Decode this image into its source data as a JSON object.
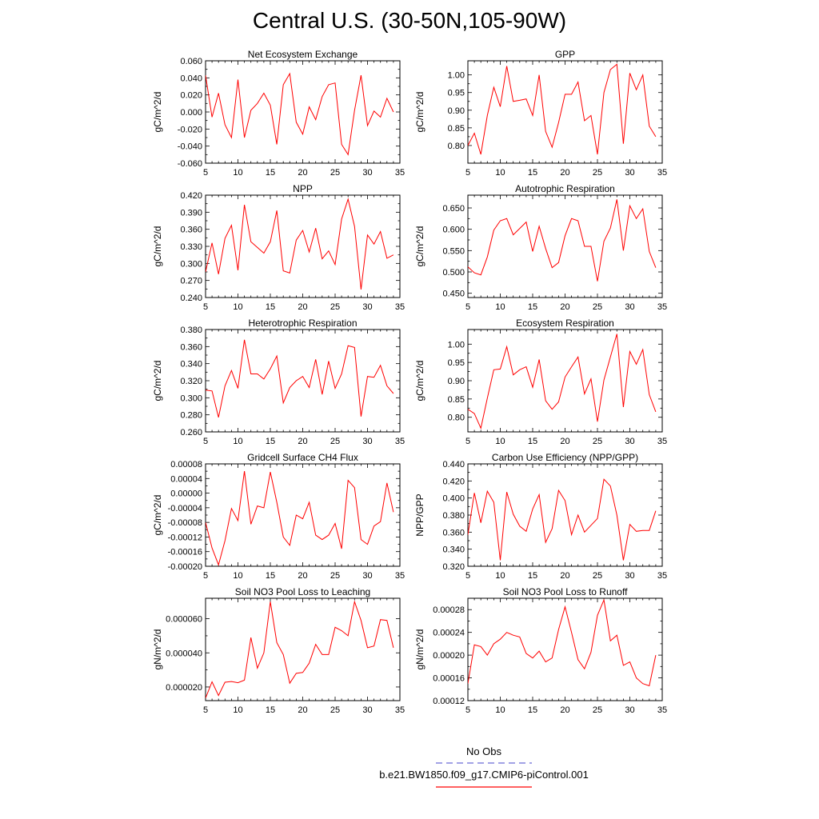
{
  "page": {
    "title": "Central U.S. (30-50N,105-90W)"
  },
  "legend": {
    "items": [
      {
        "label": "No Obs",
        "color": "#6b6bd6",
        "dashed": true
      },
      {
        "label": "b.e21.BW1850.f09_g17.CMIP6-piControl.001",
        "color": "#ff0000",
        "dashed": false
      }
    ]
  },
  "chart_data": [
    {
      "type": "line",
      "title": "Net Ecosystem Exchange",
      "ylabel": "gC/m^2/d",
      "xlim": [
        5,
        35
      ],
      "xticks": [
        5,
        10,
        15,
        20,
        25,
        30,
        35
      ],
      "ylim": [
        -0.06,
        0.06
      ],
      "yticks": [
        "-0.060",
        "-0.040",
        "-0.020",
        "0.000",
        "0.020",
        "0.040",
        "0.060"
      ],
      "yticks_num": [
        -0.06,
        -0.04,
        -0.02,
        0.0,
        0.02,
        0.04,
        0.06
      ],
      "x": [
        5,
        6,
        7,
        8,
        9,
        10,
        11,
        12,
        13,
        14,
        15,
        16,
        17,
        18,
        19,
        20,
        21,
        22,
        23,
        24,
        25,
        26,
        27,
        28,
        29,
        30,
        31,
        32,
        33,
        34
      ],
      "series": [
        {
          "values": [
            0.043,
            -0.006,
            0.022,
            -0.015,
            -0.03,
            0.038,
            -0.03,
            0.002,
            0.01,
            0.022,
            0.008,
            -0.038,
            0.032,
            0.045,
            -0.012,
            -0.026,
            0.006,
            -0.009,
            0.018,
            0.032,
            0.034,
            -0.038,
            -0.05,
            0.002,
            0.043,
            -0.016,
            0.001,
            -0.006,
            0.016,
            0.0
          ],
          "color": "#ff0000"
        }
      ]
    },
    {
      "type": "line",
      "title": "GPP",
      "ylabel": "gC/m^2/d",
      "xlim": [
        5,
        35
      ],
      "xticks": [
        5,
        10,
        15,
        20,
        25,
        30,
        35
      ],
      "ylim": [
        0.75,
        1.04
      ],
      "yticks": [
        "0.80",
        "0.85",
        "0.90",
        "0.95",
        "1.00"
      ],
      "yticks_num": [
        0.8,
        0.85,
        0.9,
        0.95,
        1.0
      ],
      "x": [
        5,
        6,
        7,
        8,
        9,
        10,
        11,
        12,
        13,
        14,
        15,
        16,
        17,
        18,
        19,
        20,
        21,
        22,
        23,
        24,
        25,
        26,
        27,
        28,
        29,
        30,
        31,
        32,
        33,
        34
      ],
      "series": [
        {
          "values": [
            0.8,
            0.835,
            0.775,
            0.885,
            0.965,
            0.91,
            1.025,
            0.925,
            0.928,
            0.932,
            0.885,
            1.0,
            0.84,
            0.795,
            0.865,
            0.945,
            0.945,
            0.98,
            0.87,
            0.885,
            0.775,
            0.95,
            1.015,
            1.03,
            0.805,
            1.005,
            0.958,
            1.0,
            0.855,
            0.825
          ],
          "color": "#ff0000"
        }
      ]
    },
    {
      "type": "line",
      "title": "NPP",
      "ylabel": "gC/m^2/d",
      "xlim": [
        5,
        35
      ],
      "xticks": [
        5,
        10,
        15,
        20,
        25,
        30,
        35
      ],
      "ylim": [
        0.24,
        0.42
      ],
      "yticks": [
        "0.240",
        "0.270",
        "0.300",
        "0.330",
        "0.360",
        "0.390",
        "0.420"
      ],
      "yticks_num": [
        0.24,
        0.27,
        0.3,
        0.33,
        0.36,
        0.39,
        0.42
      ],
      "x": [
        5,
        6,
        7,
        8,
        9,
        10,
        11,
        12,
        13,
        14,
        15,
        16,
        17,
        18,
        19,
        20,
        21,
        22,
        23,
        24,
        25,
        26,
        27,
        28,
        29,
        30,
        31,
        32,
        33,
        34
      ],
      "series": [
        {
          "values": [
            0.285,
            0.336,
            0.281,
            0.344,
            0.367,
            0.288,
            0.403,
            0.338,
            0.328,
            0.318,
            0.338,
            0.393,
            0.287,
            0.283,
            0.341,
            0.358,
            0.32,
            0.362,
            0.308,
            0.322,
            0.298,
            0.378,
            0.413,
            0.365,
            0.254,
            0.35,
            0.334,
            0.356,
            0.309,
            0.315
          ],
          "color": "#ff0000"
        }
      ]
    },
    {
      "type": "line",
      "title": "Autotrophic Respiration",
      "ylabel": "gC/m^2/d",
      "xlim": [
        5,
        35
      ],
      "xticks": [
        5,
        10,
        15,
        20,
        25,
        30,
        35
      ],
      "ylim": [
        0.44,
        0.68
      ],
      "yticks": [
        "0.450",
        "0.500",
        "0.550",
        "0.600",
        "0.650"
      ],
      "yticks_num": [
        0.45,
        0.5,
        0.55,
        0.6,
        0.65
      ],
      "x": [
        5,
        6,
        7,
        8,
        9,
        10,
        11,
        12,
        13,
        14,
        15,
        16,
        17,
        18,
        19,
        20,
        21,
        22,
        23,
        24,
        25,
        26,
        27,
        28,
        29,
        30,
        31,
        32,
        33,
        34
      ],
      "series": [
        {
          "values": [
            0.512,
            0.498,
            0.493,
            0.535,
            0.598,
            0.62,
            0.625,
            0.587,
            0.602,
            0.617,
            0.548,
            0.607,
            0.555,
            0.51,
            0.522,
            0.585,
            0.625,
            0.62,
            0.56,
            0.56,
            0.478,
            0.572,
            0.603,
            0.67,
            0.55,
            0.655,
            0.625,
            0.648,
            0.548,
            0.51
          ],
          "color": "#ff0000"
        }
      ]
    },
    {
      "type": "line",
      "title": "Heterotrophic Respiration",
      "ylabel": "gC/m^2/d",
      "xlim": [
        5,
        35
      ],
      "xticks": [
        5,
        10,
        15,
        20,
        25,
        30,
        35
      ],
      "ylim": [
        0.26,
        0.38
      ],
      "yticks": [
        "0.260",
        "0.280",
        "0.300",
        "0.320",
        "0.340",
        "0.360",
        "0.380"
      ],
      "yticks_num": [
        0.26,
        0.28,
        0.3,
        0.32,
        0.34,
        0.36,
        0.38
      ],
      "x": [
        5,
        6,
        7,
        8,
        9,
        10,
        11,
        12,
        13,
        14,
        15,
        16,
        17,
        18,
        19,
        20,
        21,
        22,
        23,
        24,
        25,
        26,
        27,
        28,
        29,
        30,
        31,
        32,
        33,
        34
      ],
      "series": [
        {
          "values": [
            0.309,
            0.308,
            0.277,
            0.314,
            0.332,
            0.311,
            0.368,
            0.328,
            0.328,
            0.322,
            0.334,
            0.349,
            0.294,
            0.312,
            0.32,
            0.325,
            0.312,
            0.345,
            0.304,
            0.343,
            0.311,
            0.328,
            0.361,
            0.359,
            0.278,
            0.325,
            0.324,
            0.338,
            0.314,
            0.305
          ],
          "color": "#ff0000"
        }
      ]
    },
    {
      "type": "line",
      "title": "Ecosystem Respiration",
      "ylabel": "gC/m^2/d",
      "xlim": [
        5,
        35
      ],
      "xticks": [
        5,
        10,
        15,
        20,
        25,
        30,
        35
      ],
      "ylim": [
        0.76,
        1.04
      ],
      "yticks": [
        "0.80",
        "0.85",
        "0.90",
        "0.95",
        "1.00"
      ],
      "yticks_num": [
        0.8,
        0.85,
        0.9,
        0.95,
        1.0
      ],
      "x": [
        5,
        6,
        7,
        8,
        9,
        10,
        11,
        12,
        13,
        14,
        15,
        16,
        17,
        18,
        19,
        20,
        21,
        22,
        23,
        24,
        25,
        26,
        27,
        28,
        29,
        30,
        31,
        32,
        33,
        34
      ],
      "series": [
        {
          "values": [
            0.822,
            0.81,
            0.77,
            0.852,
            0.93,
            0.932,
            0.993,
            0.916,
            0.93,
            0.938,
            0.882,
            0.958,
            0.845,
            0.822,
            0.842,
            0.91,
            0.938,
            0.965,
            0.864,
            0.905,
            0.788,
            0.902,
            0.965,
            1.028,
            0.828,
            0.98,
            0.945,
            0.985,
            0.862,
            0.815
          ],
          "color": "#ff0000"
        }
      ]
    },
    {
      "type": "line",
      "title": "Gridcell Surface CH4 Flux",
      "ylabel": "gC/m^2/d",
      "xlim": [
        5,
        35
      ],
      "xticks": [
        5,
        10,
        15,
        20,
        25,
        30,
        35
      ],
      "ylim": [
        -0.0002,
        8e-05
      ],
      "yticks": [
        "-0.00020",
        "-0.00016",
        "-0.00012",
        "-0.00008",
        "-0.00004",
        "0.00000",
        "0.00004",
        "0.00008"
      ],
      "yticks_num": [
        -0.0002,
        -0.00016,
        -0.00012,
        -8e-05,
        -4e-05,
        0.0,
        4e-05,
        8e-05
      ],
      "x": [
        5,
        6,
        7,
        8,
        9,
        10,
        11,
        12,
        13,
        14,
        15,
        16,
        17,
        18,
        19,
        20,
        21,
        22,
        23,
        24,
        25,
        26,
        27,
        28,
        29,
        30,
        31,
        32,
        33,
        34
      ],
      "series": [
        {
          "values": [
            -8e-05,
            -0.00015,
            -0.000196,
            -0.00013,
            -4.2e-05,
            -7.5e-05,
            6e-05,
            -8.5e-05,
            -3.5e-05,
            -4e-05,
            5.8e-05,
            -2.5e-05,
            -0.00012,
            -0.000143,
            -6e-05,
            -7e-05,
            -2.5e-05,
            -0.000115,
            -0.000127,
            -0.000115,
            -8.3e-05,
            -0.000152,
            3.5e-05,
            1.5e-05,
            -0.000127,
            -0.00014,
            -9e-05,
            -7.8e-05,
            2.8e-05,
            -5.2e-05
          ],
          "color": "#ff0000"
        }
      ]
    },
    {
      "type": "line",
      "title": "Carbon Use Efficiency (NPP/GPP)",
      "ylabel": "NPP/GPP",
      "xlim": [
        5,
        35
      ],
      "xticks": [
        5,
        10,
        15,
        20,
        25,
        30,
        35
      ],
      "ylim": [
        0.32,
        0.44
      ],
      "yticks": [
        "0.320",
        "0.340",
        "0.360",
        "0.380",
        "0.400",
        "0.420",
        "0.440"
      ],
      "yticks_num": [
        0.32,
        0.34,
        0.36,
        0.38,
        0.4,
        0.42,
        0.44
      ],
      "x": [
        5,
        6,
        7,
        8,
        9,
        10,
        11,
        12,
        13,
        14,
        15,
        16,
        17,
        18,
        19,
        20,
        21,
        22,
        23,
        24,
        25,
        26,
        27,
        28,
        29,
        30,
        31,
        32,
        33,
        34
      ],
      "series": [
        {
          "values": [
            0.357,
            0.406,
            0.371,
            0.408,
            0.395,
            0.327,
            0.407,
            0.381,
            0.367,
            0.361,
            0.387,
            0.404,
            0.348,
            0.364,
            0.409,
            0.397,
            0.357,
            0.38,
            0.36,
            0.368,
            0.376,
            0.422,
            0.414,
            0.38,
            0.327,
            0.369,
            0.361,
            0.362,
            0.362,
            0.385
          ],
          "color": "#ff0000"
        }
      ]
    },
    {
      "type": "line",
      "title": "Soil NO3 Pool Loss to Leaching",
      "ylabel": "gN/m^2/d",
      "xlim": [
        5,
        35
      ],
      "xticks": [
        5,
        10,
        15,
        20,
        25,
        30,
        35
      ],
      "ylim": [
        1.2e-05,
        7.2e-05
      ],
      "yticks": [
        "0.000020",
        "0.000040",
        "0.000060"
      ],
      "yticks_num": [
        2e-05,
        4e-05,
        6e-05
      ],
      "x": [
        5,
        6,
        7,
        8,
        9,
        10,
        11,
        12,
        13,
        14,
        15,
        16,
        17,
        18,
        19,
        20,
        21,
        22,
        23,
        24,
        25,
        26,
        27,
        28,
        29,
        30,
        31,
        32,
        33,
        34
      ],
      "series": [
        {
          "values": [
            1.35e-05,
            2.3e-05,
            1.5e-05,
            2.28e-05,
            2.32e-05,
            2.25e-05,
            2.4e-05,
            4.9e-05,
            3.1e-05,
            4e-05,
            7e-05,
            4.6e-05,
            3.9e-05,
            2.22e-05,
            2.8e-05,
            2.85e-05,
            3.4e-05,
            4.5e-05,
            3.9e-05,
            3.9e-05,
            5.5e-05,
            5.3e-05,
            5e-05,
            7e-05,
            5.9e-05,
            4.3e-05,
            4.4e-05,
            5.95e-05,
            5.9e-05,
            4.3e-05
          ],
          "color": "#ff0000"
        }
      ]
    },
    {
      "type": "line",
      "title": "Soil NO3 Pool Loss to Runoff",
      "ylabel": "gN/m^2/d",
      "xlim": [
        5,
        35
      ],
      "xticks": [
        5,
        10,
        15,
        20,
        25,
        30,
        35
      ],
      "ylim": [
        0.00012,
        0.0003
      ],
      "yticks": [
        "0.00012",
        "0.00016",
        "0.00020",
        "0.00024",
        "0.00028"
      ],
      "yticks_num": [
        0.00012,
        0.00016,
        0.0002,
        0.00024,
        0.00028
      ],
      "x": [
        5,
        6,
        7,
        8,
        9,
        10,
        11,
        12,
        13,
        14,
        15,
        16,
        17,
        18,
        19,
        20,
        21,
        22,
        23,
        24,
        25,
        26,
        27,
        28,
        29,
        30,
        31,
        32,
        33,
        34
      ],
      "series": [
        {
          "values": [
            0.00015,
            0.000218,
            0.000215,
            0.0002,
            0.00022,
            0.000228,
            0.00024,
            0.000235,
            0.000232,
            0.000203,
            0.000195,
            0.000207,
            0.000188,
            0.000195,
            0.000245,
            0.000285,
            0.00024,
            0.000192,
            0.000176,
            0.000205,
            0.00027,
            0.000297,
            0.000225,
            0.000235,
            0.000182,
            0.000188,
            0.00016,
            0.00015,
            0.000146,
            0.0002
          ],
          "color": "#ff0000"
        }
      ]
    }
  ]
}
